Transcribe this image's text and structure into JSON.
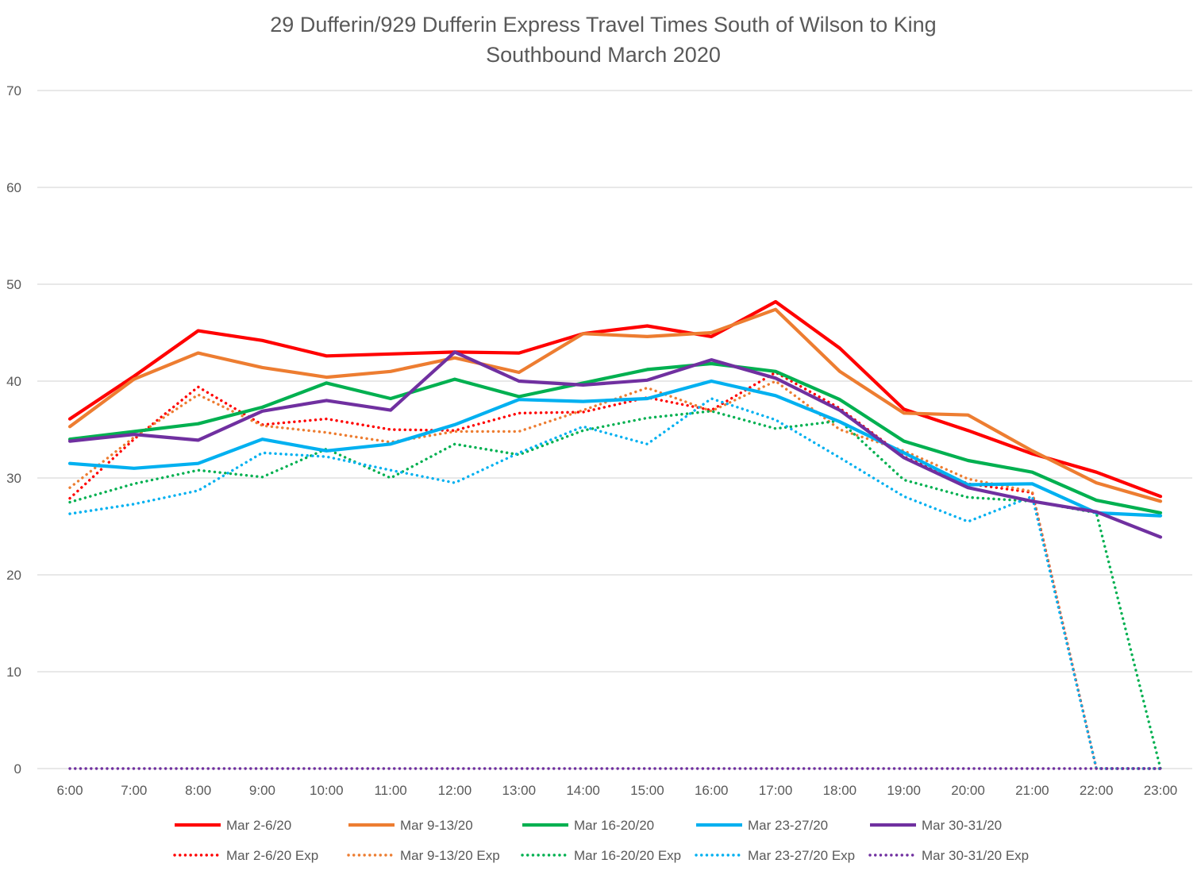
{
  "chart_data": {
    "type": "line",
    "title": "29 Dufferin/929 Dufferin Express Travel Times South of Wilson to King",
    "subtitle": "Southbound  March 2020",
    "xlabel": "",
    "ylabel": "",
    "ylim": [
      0,
      70
    ],
    "y_ticks": [
      0,
      10,
      20,
      30,
      40,
      50,
      60,
      70
    ],
    "grid": true,
    "legend_position": "bottom",
    "categories": [
      "6:00",
      "7:00",
      "8:00",
      "9:00",
      "10:00",
      "11:00",
      "12:00",
      "13:00",
      "14:00",
      "15:00",
      "16:00",
      "17:00",
      "18:00",
      "19:00",
      "20:00",
      "21:00",
      "22:00",
      "23:00"
    ],
    "series": [
      {
        "name": "Mar 2-6/20",
        "color": "#ff0000",
        "style": "solid",
        "values": [
          36.1,
          40.5,
          45.2,
          44.2,
          42.6,
          42.8,
          43.0,
          42.9,
          44.9,
          45.7,
          44.6,
          48.2,
          43.4,
          37.1,
          34.9,
          32.5,
          30.6,
          28.1
        ]
      },
      {
        "name": "Mar 9-13/20",
        "color": "#ed7d31",
        "style": "solid",
        "values": [
          35.3,
          40.2,
          42.9,
          41.4,
          40.4,
          41.0,
          42.4,
          40.9,
          44.9,
          44.6,
          45.0,
          47.4,
          41.0,
          36.7,
          36.5,
          32.8,
          29.5,
          27.6
        ]
      },
      {
        "name": "Mar 16-20/20",
        "color": "#00b050",
        "style": "solid",
        "values": [
          34.0,
          34.8,
          35.6,
          37.3,
          39.8,
          38.2,
          40.2,
          38.4,
          39.8,
          41.2,
          41.8,
          41.0,
          38.1,
          33.8,
          31.8,
          30.6,
          27.7,
          26.4
        ]
      },
      {
        "name": "Mar 23-27/20",
        "color": "#00b0f0",
        "style": "solid",
        "values": [
          31.5,
          31.0,
          31.5,
          34.0,
          32.8,
          33.5,
          35.5,
          38.1,
          37.9,
          38.2,
          40.0,
          38.5,
          35.8,
          32.6,
          29.3,
          29.4,
          26.4,
          26.1
        ]
      },
      {
        "name": "Mar 30-31/20",
        "color": "#7030a0",
        "style": "solid",
        "values": [
          33.8,
          34.5,
          33.9,
          36.9,
          38.0,
          37.0,
          43.0,
          40.0,
          39.6,
          40.1,
          42.2,
          40.3,
          37.0,
          32.1,
          29.0,
          27.6,
          26.5,
          23.9
        ]
      },
      {
        "name": "Mar 2-6/20 Exp",
        "color": "#ff0000",
        "style": "dotted",
        "values": [
          27.9,
          34.0,
          39.4,
          35.5,
          36.1,
          35.0,
          34.9,
          36.7,
          36.8,
          38.3,
          37.0,
          40.9,
          37.2,
          32.2,
          29.4,
          28.5,
          0,
          0
        ]
      },
      {
        "name": "Mar 9-13/20 Exp",
        "color": "#ed7d31",
        "style": "dotted",
        "values": [
          29.0,
          34.2,
          38.6,
          35.4,
          34.7,
          33.7,
          34.8,
          34.8,
          37.0,
          39.3,
          36.9,
          40.0,
          35.0,
          32.8,
          29.9,
          28.6,
          0,
          0
        ]
      },
      {
        "name": "Mar 16-20/20 Exp",
        "color": "#00b050",
        "style": "dotted",
        "values": [
          27.5,
          29.4,
          30.8,
          30.1,
          33.0,
          30.0,
          33.5,
          32.4,
          34.9,
          36.2,
          36.9,
          35.1,
          35.9,
          29.8,
          28.0,
          27.6,
          26.4,
          0
        ]
      },
      {
        "name": "Mar 23-27/20 Exp",
        "color": "#00b0f0",
        "style": "dotted",
        "values": [
          26.3,
          27.3,
          28.7,
          32.6,
          32.2,
          30.8,
          29.5,
          32.6,
          35.3,
          33.5,
          38.2,
          36.0,
          32.1,
          28.1,
          25.5,
          28.1,
          0,
          0
        ]
      },
      {
        "name": "Mar 30-31/20 Exp",
        "color": "#7030a0",
        "style": "dotted",
        "values": [
          0,
          0,
          0,
          0,
          0,
          0,
          0,
          0,
          0,
          0,
          0,
          0,
          0,
          0,
          0,
          0,
          0,
          0
        ]
      }
    ]
  }
}
